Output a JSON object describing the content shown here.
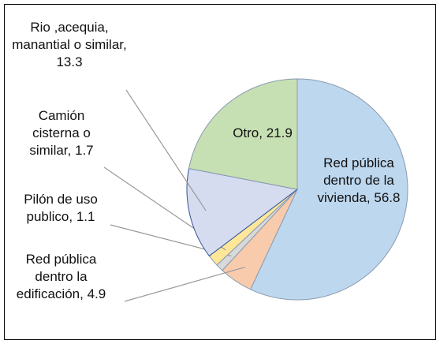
{
  "chart_data": {
    "type": "pie",
    "categories": [
      "Red pública dentro de la vivienda",
      "Red pública dentro la edificación",
      "Pilón  de uso publico",
      "Camión cisterna o similar",
      "Rio ,acequia, manantial o similar",
      "Otro"
    ],
    "values": [
      56.8,
      4.9,
      1.1,
      1.7,
      13.3,
      21.9
    ],
    "colors": [
      "#bdd7ee",
      "#f8cbad",
      "#d9d9d9",
      "#ffe699",
      "#d6dcf0",
      "#c6e0b4"
    ]
  }
}
